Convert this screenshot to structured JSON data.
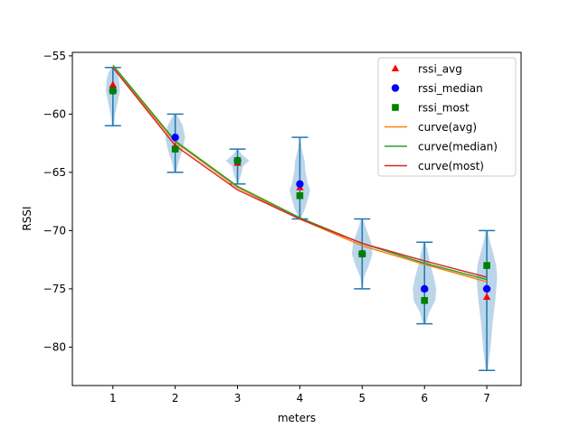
{
  "chart_data": {
    "type": "line",
    "xlabel": "meters",
    "ylabel": "RSSI",
    "xlim": [
      0.35,
      7.55
    ],
    "ylim": [
      -83.3,
      -54.7
    ],
    "x_ticks": [
      1,
      2,
      3,
      4,
      5,
      6,
      7
    ],
    "y_ticks": [
      -80,
      -75,
      -70,
      -65,
      -60,
      -55
    ],
    "legend_position": "upper right",
    "colors": {
      "violin": "#1f77b4",
      "rssi_avg": "#ff0000",
      "rssi_median": "#0000ff",
      "rssi_most": "#008000",
      "curve_avg": "#ff7f0e",
      "curve_median": "#2ca02c",
      "curve_most": "#d62728"
    },
    "violins": [
      {
        "x": 1,
        "min": -61,
        "max": -56,
        "profile": [
          [
            -61,
            0.02
          ],
          [
            -60,
            0.05
          ],
          [
            -59,
            0.1
          ],
          [
            -58,
            0.15
          ],
          [
            -57.5,
            0.14
          ],
          [
            -57,
            0.13
          ],
          [
            -56.5,
            0.1
          ],
          [
            -56,
            0.03
          ]
        ]
      },
      {
        "x": 2,
        "min": -65,
        "max": -60,
        "profile": [
          [
            -65,
            0.02
          ],
          [
            -64,
            0.08
          ],
          [
            -63,
            0.16
          ],
          [
            -62,
            0.21
          ],
          [
            -61,
            0.16
          ],
          [
            -60,
            0.03
          ]
        ]
      },
      {
        "x": 3,
        "min": -66,
        "max": -63,
        "profile": [
          [
            -66,
            0.01
          ],
          [
            -65.5,
            0.05
          ],
          [
            -65,
            0.09
          ],
          [
            -64.5,
            0.11
          ],
          [
            -64,
            0.25
          ],
          [
            -63.5,
            0.1
          ],
          [
            -63,
            0.01
          ]
        ]
      },
      {
        "x": 4,
        "min": -69,
        "max": -62,
        "profile": [
          [
            -69,
            0.02
          ],
          [
            -68,
            0.12
          ],
          [
            -67,
            0.19
          ],
          [
            -66.5,
            0.22
          ],
          [
            -66,
            0.17
          ],
          [
            -65,
            0.12
          ],
          [
            -64,
            0.1
          ],
          [
            -63,
            0.04
          ],
          [
            -62,
            0.01
          ]
        ]
      },
      {
        "x": 5,
        "min": -75,
        "max": -69,
        "profile": [
          [
            -75,
            0.01
          ],
          [
            -74,
            0.04
          ],
          [
            -73,
            0.14
          ],
          [
            -72,
            0.22
          ],
          [
            -71,
            0.19
          ],
          [
            -70,
            0.1
          ],
          [
            -69,
            0.02
          ]
        ]
      },
      {
        "x": 6,
        "min": -78,
        "max": -71,
        "profile": [
          [
            -78,
            0.03
          ],
          [
            -77,
            0.1
          ],
          [
            -76,
            0.23
          ],
          [
            -75,
            0.25
          ],
          [
            -74,
            0.2
          ],
          [
            -73,
            0.13
          ],
          [
            -72,
            0.08
          ],
          [
            -71,
            0.02
          ]
        ]
      },
      {
        "x": 7,
        "min": -82,
        "max": -70,
        "profile": [
          [
            -82,
            0.02
          ],
          [
            -80,
            0.08
          ],
          [
            -78,
            0.12
          ],
          [
            -76,
            0.18
          ],
          [
            -74,
            0.22
          ],
          [
            -73,
            0.2
          ],
          [
            -72,
            0.14
          ],
          [
            -71,
            0.07
          ],
          [
            -70,
            0.02
          ]
        ]
      }
    ],
    "series": [
      {
        "name": "rssi_avg",
        "kind": "marker",
        "marker": "triangle",
        "values": [
          -57.5,
          -62.8,
          -64.2,
          -66.3,
          -72.0,
          -75.0,
          -75.7
        ]
      },
      {
        "name": "rssi_median",
        "kind": "marker",
        "marker": "circle",
        "values": [
          -58.0,
          -62.0,
          -64.0,
          -66.0,
          -72.0,
          -75.0,
          -75.0
        ]
      },
      {
        "name": "rssi_most",
        "kind": "marker",
        "marker": "square",
        "values": [
          -58.0,
          -63.0,
          -64.0,
          -67.0,
          -72.0,
          -76.0,
          -73.0
        ]
      },
      {
        "name": "curve(avg)",
        "kind": "line",
        "values": [
          -56.0,
          -62.4,
          -66.3,
          -69.0,
          -71.3,
          -72.9,
          -74.4
        ]
      },
      {
        "name": "curve(median)",
        "kind": "line",
        "values": [
          -55.8,
          -62.3,
          -66.2,
          -68.9,
          -71.1,
          -72.8,
          -74.2
        ]
      },
      {
        "name": "curve(most)",
        "kind": "line",
        "values": [
          -56.0,
          -62.7,
          -66.5,
          -69.0,
          -71.1,
          -72.6,
          -74.0
        ]
      }
    ],
    "legend": [
      "rssi_avg",
      "rssi_median",
      "rssi_most",
      "curve(avg)",
      "curve(median)",
      "curve(most)"
    ]
  }
}
